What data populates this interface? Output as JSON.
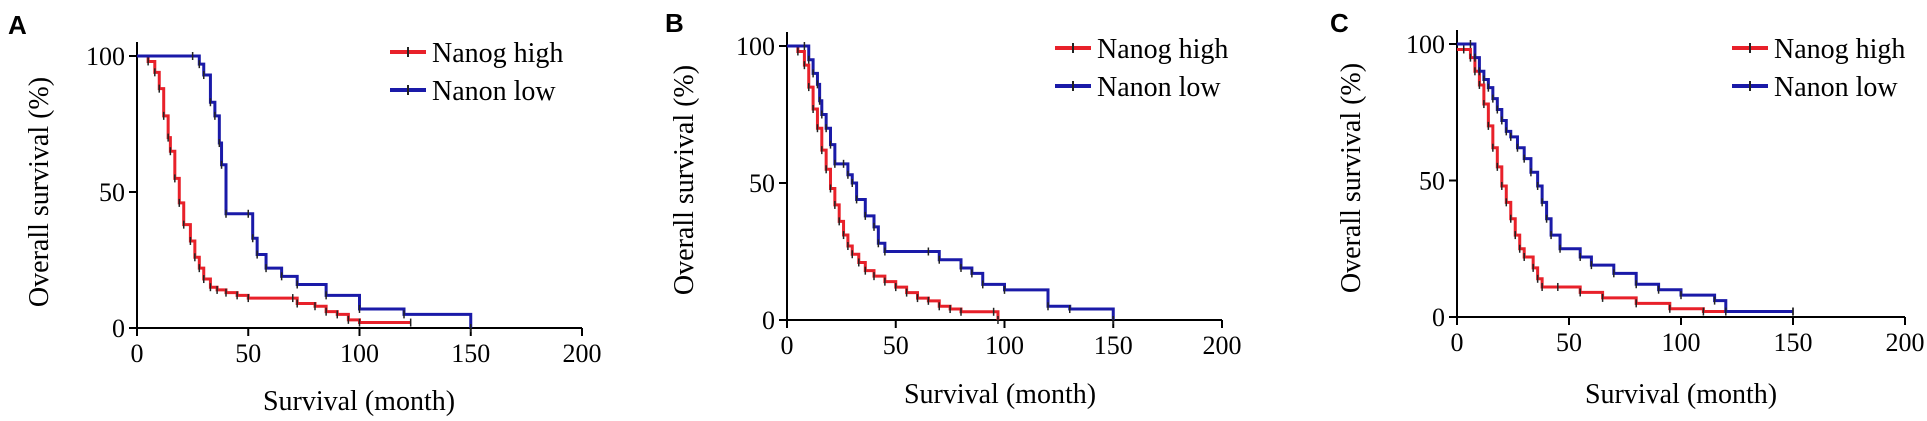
{
  "colors": {
    "high": "#e8212a",
    "low": "#1a1aa8",
    "censor": "#222222"
  },
  "chart_data": [
    {
      "type": "line",
      "panel": "A",
      "xlabel": "Survival (month)",
      "ylabel": "Overall survival (%)",
      "xlim": [
        0,
        200
      ],
      "ylim": [
        0,
        100
      ],
      "xticks": [
        0,
        50,
        100,
        150,
        200
      ],
      "yticks": [
        0,
        50,
        100
      ],
      "legend_position": "top-right",
      "series": [
        {
          "name": "Nanog high",
          "color_key": "high",
          "points": [
            [
              0,
              100
            ],
            [
              5,
              98
            ],
            [
              8,
              94
            ],
            [
              10,
              88
            ],
            [
              12,
              78
            ],
            [
              14,
              70
            ],
            [
              15,
              65
            ],
            [
              17,
              55
            ],
            [
              19,
              46
            ],
            [
              21,
              38
            ],
            [
              24,
              32
            ],
            [
              26,
              26
            ],
            [
              28,
              22
            ],
            [
              30,
              18
            ],
            [
              33,
              15
            ],
            [
              36,
              14
            ],
            [
              40,
              13
            ],
            [
              45,
              12
            ],
            [
              50,
              11
            ],
            [
              70,
              11
            ],
            [
              72,
              9
            ],
            [
              80,
              8
            ],
            [
              85,
              6
            ],
            [
              90,
              5
            ],
            [
              95,
              3
            ],
            [
              100,
              2
            ],
            [
              123,
              2
            ]
          ]
        },
        {
          "name": "Nanon low",
          "color_key": "low",
          "points": [
            [
              0,
              100
            ],
            [
              25,
              100
            ],
            [
              28,
              97
            ],
            [
              30,
              93
            ],
            [
              33,
              83
            ],
            [
              35,
              78
            ],
            [
              37,
              68
            ],
            [
              38,
              60
            ],
            [
              40,
              42
            ],
            [
              50,
              42
            ],
            [
              52,
              33
            ],
            [
              54,
              27
            ],
            [
              58,
              22
            ],
            [
              65,
              19
            ],
            [
              72,
              16
            ],
            [
              85,
              12
            ],
            [
              100,
              7
            ],
            [
              120,
              5
            ],
            [
              150,
              0
            ]
          ]
        }
      ]
    },
    {
      "type": "line",
      "panel": "B",
      "xlabel": "Survival (month)",
      "ylabel": "Overall survival (%)",
      "xlim": [
        0,
        200
      ],
      "ylim": [
        0,
        100
      ],
      "xticks": [
        0,
        50,
        100,
        150,
        200
      ],
      "yticks": [
        0,
        50,
        100
      ],
      "legend_position": "top-right",
      "series": [
        {
          "name": "Nanog high",
          "color_key": "high",
          "points": [
            [
              0,
              100
            ],
            [
              5,
              98
            ],
            [
              8,
              93
            ],
            [
              10,
              85
            ],
            [
              12,
              77
            ],
            [
              14,
              70
            ],
            [
              16,
              62
            ],
            [
              18,
              55
            ],
            [
              20,
              48
            ],
            [
              22,
              42
            ],
            [
              24,
              36
            ],
            [
              26,
              31
            ],
            [
              28,
              27
            ],
            [
              30,
              24
            ],
            [
              33,
              21
            ],
            [
              36,
              18
            ],
            [
              40,
              16
            ],
            [
              45,
              14
            ],
            [
              50,
              12
            ],
            [
              55,
              10
            ],
            [
              60,
              8
            ],
            [
              65,
              7
            ],
            [
              70,
              5
            ],
            [
              75,
              4
            ],
            [
              80,
              3
            ],
            [
              95,
              3
            ],
            [
              97,
              0
            ]
          ]
        },
        {
          "name": "Nanon low",
          "color_key": "low",
          "points": [
            [
              0,
              100
            ],
            [
              8,
              100
            ],
            [
              10,
              95
            ],
            [
              12,
              90
            ],
            [
              14,
              86
            ],
            [
              15,
              80
            ],
            [
              16,
              75
            ],
            [
              18,
              70
            ],
            [
              20,
              64
            ],
            [
              22,
              57
            ],
            [
              26,
              57
            ],
            [
              28,
              53
            ],
            [
              30,
              50
            ],
            [
              32,
              44
            ],
            [
              36,
              38
            ],
            [
              40,
              34
            ],
            [
              42,
              28
            ],
            [
              45,
              25
            ],
            [
              65,
              25
            ],
            [
              70,
              22
            ],
            [
              80,
              19
            ],
            [
              85,
              17
            ],
            [
              90,
              13
            ],
            [
              100,
              11
            ],
            [
              120,
              5
            ],
            [
              130,
              4
            ],
            [
              150,
              0
            ]
          ]
        }
      ]
    },
    {
      "type": "line",
      "panel": "C",
      "xlabel": "Survival (month)",
      "ylabel": "Overall survival (%)",
      "xlim": [
        0,
        200
      ],
      "ylim": [
        0,
        100
      ],
      "xticks": [
        0,
        50,
        100,
        150,
        200
      ],
      "yticks": [
        0,
        50,
        100
      ],
      "legend_position": "top-right",
      "series": [
        {
          "name": "Nanog high",
          "color_key": "high",
          "points": [
            [
              0,
              98
            ],
            [
              3,
              98
            ],
            [
              6,
              95
            ],
            [
              8,
              90
            ],
            [
              10,
              85
            ],
            [
              12,
              78
            ],
            [
              14,
              70
            ],
            [
              16,
              62
            ],
            [
              18,
              55
            ],
            [
              20,
              48
            ],
            [
              22,
              42
            ],
            [
              24,
              36
            ],
            [
              26,
              30
            ],
            [
              28,
              25
            ],
            [
              30,
              22
            ],
            [
              34,
              18
            ],
            [
              36,
              14
            ],
            [
              38,
              11
            ],
            [
              45,
              11
            ],
            [
              55,
              9
            ],
            [
              65,
              7
            ],
            [
              80,
              5
            ],
            [
              95,
              3
            ],
            [
              110,
              2
            ],
            [
              150,
              2
            ]
          ]
        },
        {
          "name": "Nanon low",
          "color_key": "low",
          "points": [
            [
              0,
              100
            ],
            [
              6,
              100
            ],
            [
              8,
              95
            ],
            [
              10,
              90
            ],
            [
              12,
              87
            ],
            [
              14,
              84
            ],
            [
              16,
              80
            ],
            [
              18,
              76
            ],
            [
              20,
              72
            ],
            [
              22,
              68
            ],
            [
              24,
              66
            ],
            [
              27,
              62
            ],
            [
              30,
              58
            ],
            [
              33,
              53
            ],
            [
              36,
              48
            ],
            [
              38,
              42
            ],
            [
              40,
              36
            ],
            [
              42,
              30
            ],
            [
              46,
              25
            ],
            [
              55,
              22
            ],
            [
              60,
              19
            ],
            [
              70,
              16
            ],
            [
              80,
              12
            ],
            [
              90,
              10
            ],
            [
              100,
              8
            ],
            [
              115,
              6
            ],
            [
              120,
              2
            ],
            [
              150,
              2
            ]
          ]
        }
      ]
    }
  ]
}
